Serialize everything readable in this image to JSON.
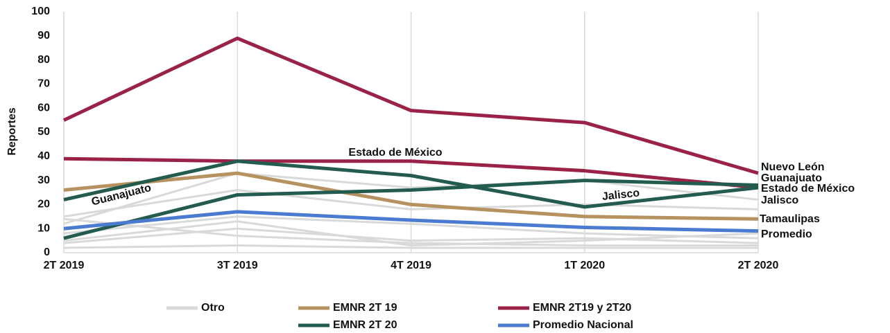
{
  "chart_data": {
    "type": "line",
    "y_label": "Reportes",
    "categories": [
      "2T 2019",
      "3T 2019",
      "4T 2019",
      "1T 2020",
      "2T 2020"
    ],
    "ylim": [
      0,
      100
    ],
    "yticks": [
      0,
      10,
      20,
      30,
      40,
      50,
      60,
      70,
      80,
      90,
      100
    ],
    "grid": true,
    "legend": "bottom",
    "series": [
      {
        "name": "Otro",
        "color": "#d9d9d9",
        "values": [
          12,
          33,
          27,
          30,
          22
        ]
      },
      {
        "name": "Otro",
        "color": "#d9d9d9",
        "values": [
          15,
          26,
          18,
          20,
          18
        ]
      },
      {
        "name": "Otro",
        "color": "#d9d9d9",
        "values": [
          8,
          15,
          12,
          8,
          6
        ]
      },
      {
        "name": "Otro",
        "color": "#d9d9d9",
        "values": [
          4,
          10,
          5,
          6,
          4
        ]
      },
      {
        "name": "Otro",
        "color": "#d9d9d9",
        "values": [
          2,
          3,
          2,
          2,
          2
        ]
      },
      {
        "name": "Otro",
        "color": "#d9d9d9",
        "values": [
          14,
          7,
          4,
          3,
          3
        ]
      },
      {
        "name": "Otro",
        "color": "#d9d9d9",
        "values": [
          5,
          13,
          3,
          5,
          8
        ]
      },
      {
        "name": "EMNR 2T 19",
        "color": "#b5925f",
        "values": [
          26,
          33,
          20,
          15,
          14
        ]
      },
      {
        "name": "EMNR 2T19 y 2T20",
        "color": "#9b2247",
        "values": [
          55,
          89,
          59,
          54,
          33
        ]
      },
      {
        "name": "EMNR 2T19 y 2T20",
        "color": "#9b2247",
        "values": [
          39,
          38,
          38,
          34,
          27
        ]
      },
      {
        "name": "EMNR 2T 20",
        "color": "#235b4e",
        "values": [
          22,
          38,
          32,
          19,
          27
        ]
      },
      {
        "name": "EMNR 2T 20",
        "color": "#235b4e",
        "values": [
          6,
          24,
          26,
          30,
          28
        ]
      },
      {
        "name": "Promedio Nacional",
        "color": "#4a7bd0",
        "values": [
          10,
          17,
          13.5,
          10.5,
          9
        ]
      }
    ],
    "annotations": [
      "Guanajuato",
      "Estado de México",
      "Jalisco",
      "Nuevo León",
      "Guanajuato",
      "Estado de México",
      "Jalisco",
      "Tamaulipas",
      "Promedio"
    ]
  }
}
